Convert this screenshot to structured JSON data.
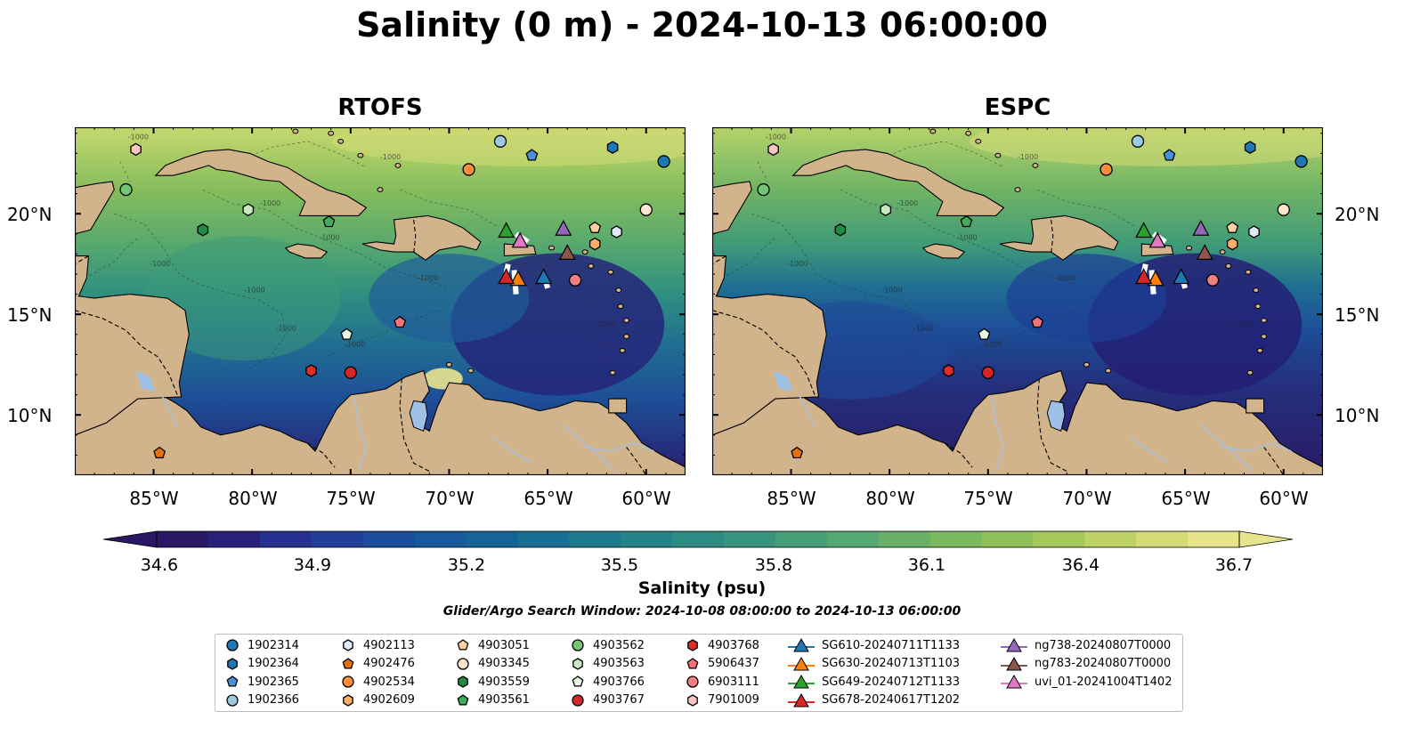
{
  "title": "Salinity (0 m) - 2024-10-13 06:00:00",
  "panels": [
    {
      "title": "RTOFS",
      "variant": "rtofs"
    },
    {
      "title": "ESPC",
      "variant": "espc"
    }
  ],
  "lat_ticks": [
    "20°N",
    "15°N",
    "10°N"
  ],
  "lon_ticks": [
    "85°W",
    "80°W",
    "75°W",
    "70°W",
    "65°W",
    "60°W"
  ],
  "map_extent": {
    "lon_min": -89,
    "lon_max": -58,
    "lat_min": 7,
    "lat_max": 24.3
  },
  "colorbar": {
    "label": "Salinity (psu)",
    "min": 34.6,
    "max": 36.7,
    "ticks": [
      "34.6",
      "34.9",
      "35.2",
      "35.5",
      "35.8",
      "36.1",
      "36.4",
      "36.7"
    ],
    "colors": [
      "#2a1864",
      "#29207a",
      "#26308e",
      "#213f98",
      "#1b4c9b",
      "#17599b",
      "#166497",
      "#186e93",
      "#1e788e",
      "#258289",
      "#2d8b84",
      "#38947e",
      "#459e77",
      "#55a86f",
      "#68b067",
      "#7ab95f",
      "#8fc05a",
      "#a6c85a",
      "#bdd166",
      "#d4da76",
      "#e8e48c"
    ]
  },
  "search_window": "Glider/Argo Search Window: 2024-10-08 08:00:00 to 2024-10-13 06:00:00",
  "contour_label": "-1000",
  "floats": [
    {
      "id": "1902314",
      "marker": "circle",
      "color": "#1f77b4",
      "lon": -59.1,
      "lat": 22.6
    },
    {
      "id": "1902364",
      "marker": "hexagon",
      "color": "#1f77b4",
      "lon": -61.7,
      "lat": 23.3
    },
    {
      "id": "1902365",
      "marker": "pentagon",
      "color": "#4a90d9",
      "lon": -65.8,
      "lat": 22.9
    },
    {
      "id": "1902366",
      "marker": "circle",
      "color": "#9ecae1",
      "lon": -67.4,
      "lat": 23.6
    },
    {
      "id": "4902113",
      "marker": "hexagon",
      "color": "#deebf7",
      "lon": -61.5,
      "lat": 19.1
    },
    {
      "id": "4902476",
      "marker": "pentagon",
      "color": "#e6700c",
      "lon": -84.7,
      "lat": 8.1
    },
    {
      "id": "4902534",
      "marker": "circle",
      "color": "#fd8d3c",
      "lon": -69.0,
      "lat": 22.2
    },
    {
      "id": "4902609",
      "marker": "hexagon",
      "color": "#fdae6b",
      "lon": -62.6,
      "lat": 18.5
    },
    {
      "id": "4903051",
      "marker": "pentagon",
      "color": "#fdd0a2",
      "lon": -62.6,
      "lat": 19.3
    },
    {
      "id": "4903345",
      "marker": "circle",
      "color": "#fee6ce",
      "lon": -60.0,
      "lat": 20.2
    },
    {
      "id": "4903559",
      "marker": "hexagon",
      "color": "#238b45",
      "lon": -82.5,
      "lat": 19.2
    },
    {
      "id": "4903561",
      "marker": "pentagon",
      "color": "#41ab5d",
      "lon": -76.1,
      "lat": 19.6
    },
    {
      "id": "4903562",
      "marker": "circle",
      "color": "#74c476",
      "lon": -86.4,
      "lat": 21.2
    },
    {
      "id": "4903563",
      "marker": "hexagon",
      "color": "#c7e9c0",
      "lon": -80.2,
      "lat": 20.2
    },
    {
      "id": "4903766",
      "marker": "pentagon",
      "color": "#e5f5e0",
      "lon": -75.2,
      "lat": 14.0
    },
    {
      "id": "4903767",
      "marker": "circle",
      "color": "#d62728",
      "lon": -75.0,
      "lat": 12.1
    },
    {
      "id": "4903768",
      "marker": "hexagon",
      "color": "#de2d26",
      "lon": -77.0,
      "lat": 12.2
    },
    {
      "id": "5906437",
      "marker": "pentagon",
      "color": "#f4727a",
      "lon": -72.5,
      "lat": 14.6
    },
    {
      "id": "6903111",
      "marker": "circle",
      "color": "#f08080",
      "lon": -63.6,
      "lat": 16.7
    },
    {
      "id": "7901009",
      "marker": "hexagon",
      "color": "#fcc5c0",
      "lon": -85.9,
      "lat": 23.2
    }
  ],
  "gliders": [
    {
      "id": "SG610-20240711T1133",
      "color": "#1f77b4",
      "lon": -65.2,
      "lat": 16.8
    },
    {
      "id": "SG630-20240713T1103",
      "color": "#ff7f0e",
      "lon": -66.5,
      "lat": 16.7
    },
    {
      "id": "SG649-20240712T1133",
      "color": "#2ca02c",
      "lon": -67.1,
      "lat": 19.1
    },
    {
      "id": "SG678-20240617T1202",
      "color": "#d62728",
      "lon": -67.1,
      "lat": 16.8
    },
    {
      "id": "ng738-20240807T0000",
      "color": "#9467bd",
      "lon": -64.2,
      "lat": 19.2
    },
    {
      "id": "ng783-20240807T0000",
      "color": "#8c564b",
      "lon": -64.0,
      "lat": 18.0
    },
    {
      "id": "uvi_01-20241004T1402",
      "color": "#e377c2",
      "lon": -66.4,
      "lat": 18.6
    }
  ]
}
